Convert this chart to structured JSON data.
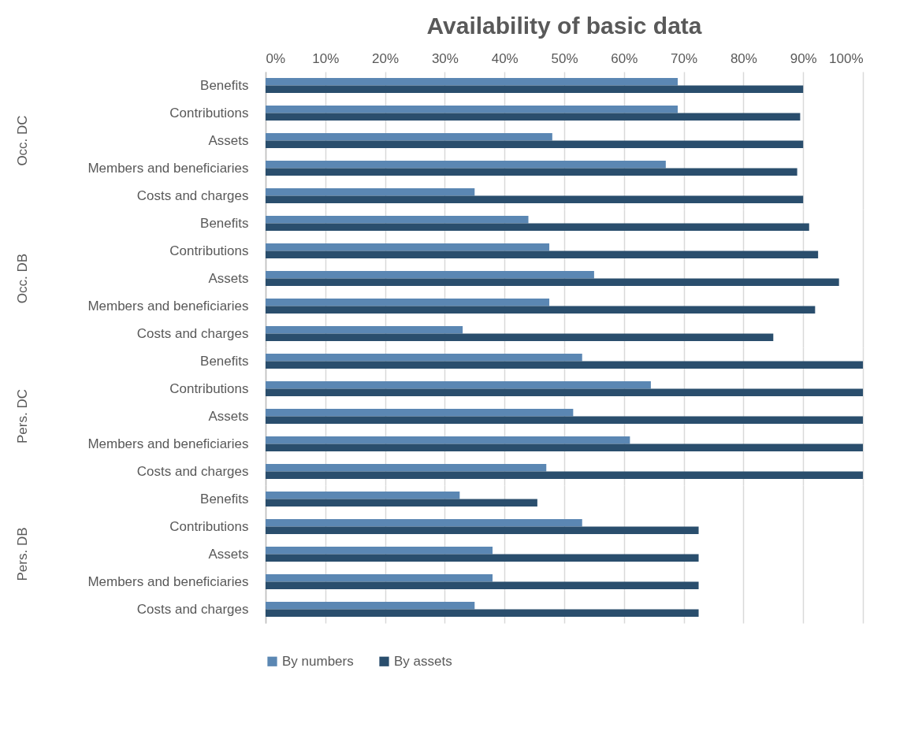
{
  "chart_data": [
    {
      "type": "bar",
      "orientation": "horizontal",
      "title": "Availability of basic data",
      "ylabel": "Occ. DC",
      "categories": [
        "Benefits",
        "Contributions",
        "Assets",
        "Members and beneficiaries",
        "Costs and charges"
      ],
      "series": [
        {
          "color": "#5b87b3",
          "values": [
            69,
            69,
            48,
            67,
            35
          ]
        },
        {
          "color": "#2a4e6d",
          "values": [
            90,
            89.5,
            90,
            89,
            90
          ]
        }
      ],
      "xlim": [
        0,
        100
      ],
      "xticks": [
        {
          "value": 0,
          "label": "0%"
        },
        {
          "value": 10,
          "label": "10%"
        },
        {
          "value": 20,
          "label": "20%"
        },
        {
          "value": 30,
          "label": "30%"
        },
        {
          "value": 40,
          "label": "40%"
        },
        {
          "value": 50,
          "label": "50%"
        },
        {
          "value": 60,
          "label": "60%"
        },
        {
          "value": 70,
          "label": "70%"
        },
        {
          "value": 80,
          "label": "80%"
        },
        {
          "value": 90,
          "label": "90%"
        },
        {
          "value": 100,
          "label": "100%"
        }
      ],
      "grid": "x",
      "legend": false
    },
    {
      "type": "bar",
      "orientation": "horizontal",
      "ylabel": "Occ. DB",
      "categories": [
        "Benefits",
        "Contributions",
        "Assets",
        "Members and beneficiaries",
        "Costs and charges"
      ],
      "series": [
        {
          "color": "#5b87b3",
          "values": [
            44,
            47.5,
            55,
            47.5,
            33
          ]
        },
        {
          "color": "#2a4e6d",
          "values": [
            91,
            92.5,
            96,
            92,
            85
          ]
        }
      ],
      "xlim": [
        0,
        100
      ],
      "grid": "x",
      "legend": false,
      "tick_labels": "y"
    },
    {
      "type": "bar",
      "orientation": "horizontal",
      "ylabel": "Pers. DC",
      "categories": [
        "Benefits",
        "Contributions",
        "Assets",
        "Members and beneficiaries",
        "Costs and charges"
      ],
      "series": [
        {
          "color": "#5b87b3",
          "values": [
            53,
            64.5,
            51.5,
            61,
            47
          ]
        },
        {
          "color": "#2a4e6d",
          "values": [
            100,
            100,
            100,
            100,
            100
          ]
        }
      ],
      "xlim": [
        0,
        100
      ],
      "grid": "x",
      "legend": false,
      "tick_labels": "y"
    },
    {
      "type": "bar",
      "orientation": "horizontal",
      "ylabel": "Pers. DB",
      "categories": [
        "Benefits",
        "Contributions",
        "Assets",
        "Members and beneficiaries",
        "Costs and charges"
      ],
      "series": [
        {
          "name": "By numbers",
          "color": "#5b87b3",
          "values": [
            32.5,
            53,
            38,
            38,
            35
          ]
        },
        {
          "name": "By assets",
          "color": "#2a4e6d",
          "values": [
            45.5,
            72.5,
            72.5,
            72.5,
            72.5
          ]
        }
      ],
      "xlim": [
        0,
        100
      ],
      "grid": "x",
      "legend": "bottom",
      "tick_labels": "y"
    }
  ]
}
